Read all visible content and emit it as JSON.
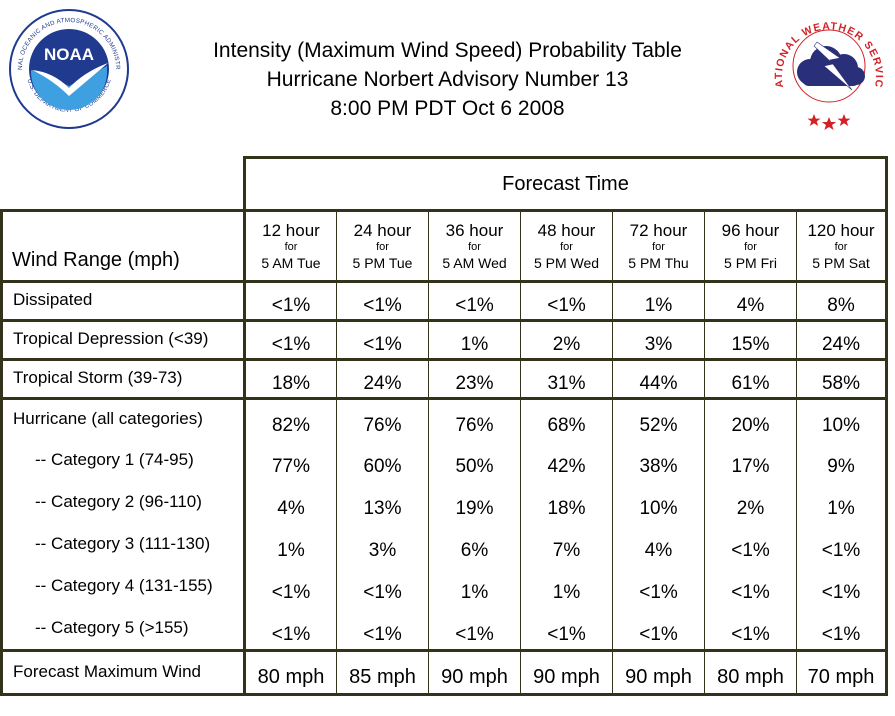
{
  "header": {
    "title_line1": "Intensity (Maximum Wind Speed) Probability Table",
    "title_line2": "Hurricane Norbert Advisory Number 13",
    "title_line3": "8:00 PM PDT Oct 6 2008",
    "noaa_logo": {
      "center_text": "NOAA",
      "ring_text": "NATIONAL OCEANIC AND ATMOSPHERIC ADMINISTRATION",
      "bottom_text": "U.S. DEPARTMENT OF COMMERCE",
      "colors": {
        "navy": "#1f3a8f",
        "sky": "#3ea0e0",
        "white": "#ffffff"
      }
    },
    "nws_logo": {
      "ring_text": "NATIONAL WEATHER SERVICE",
      "colors": {
        "red": "#d42027",
        "cloud": "#2a2f7a",
        "bolt": "#ffffff"
      }
    }
  },
  "table": {
    "forecast_time_label": "Forecast Time",
    "wind_range_label": "Wind Range (mph)",
    "for_word": "for",
    "columns": [
      {
        "hours": "12 hour",
        "when": "5 AM Tue"
      },
      {
        "hours": "24 hour",
        "when": "5 PM Tue"
      },
      {
        "hours": "36 hour",
        "when": "5 AM Wed"
      },
      {
        "hours": "48 hour",
        "when": "5 PM Wed"
      },
      {
        "hours": "72 hour",
        "when": "5 PM Thu"
      },
      {
        "hours": "96 hour",
        "when": "5 PM Fri"
      },
      {
        "hours": "120 hour",
        "when": "5 PM Sat"
      }
    ],
    "rows": {
      "dissipated": {
        "label": "Dissipated",
        "values": [
          "<1%",
          "<1%",
          "<1%",
          "<1%",
          "1%",
          "4%",
          "8%"
        ]
      },
      "tropical_depression": {
        "label": "Tropical Depression (<39)",
        "values": [
          "<1%",
          "<1%",
          "1%",
          "2%",
          "3%",
          "15%",
          "24%"
        ]
      },
      "tropical_storm": {
        "label": "Tropical Storm (39-73)",
        "values": [
          "18%",
          "24%",
          "23%",
          "31%",
          "44%",
          "61%",
          "58%"
        ]
      },
      "hurricane_all": {
        "label": "Hurricane (all categories)",
        "values": [
          "82%",
          "76%",
          "76%",
          "68%",
          "52%",
          "20%",
          "10%"
        ]
      },
      "category_1": {
        "label": "-- Category 1 (74-95)",
        "values": [
          "77%",
          "60%",
          "50%",
          "42%",
          "38%",
          "17%",
          "9%"
        ]
      },
      "category_2": {
        "label": "-- Category 2 (96-110)",
        "values": [
          "4%",
          "13%",
          "19%",
          "18%",
          "10%",
          "2%",
          "1%"
        ]
      },
      "category_3": {
        "label": "-- Category 3 (111-130)",
        "values": [
          "1%",
          "3%",
          "6%",
          "7%",
          "4%",
          "<1%",
          "<1%"
        ]
      },
      "category_4": {
        "label": "-- Category 4 (131-155)",
        "values": [
          "<1%",
          "<1%",
          "1%",
          "1%",
          "<1%",
          "<1%",
          "<1%"
        ]
      },
      "category_5": {
        "label": "-- Category 5 (>155)",
        "values": [
          "<1%",
          "<1%",
          "<1%",
          "<1%",
          "<1%",
          "<1%",
          "<1%"
        ]
      },
      "forecast_max_wind": {
        "label": "Forecast Maximum Wind",
        "values": [
          "80 mph",
          "85 mph",
          "90 mph",
          "90 mph",
          "90 mph",
          "80 mph",
          "70 mph"
        ]
      }
    },
    "border_color": "#33331c"
  }
}
